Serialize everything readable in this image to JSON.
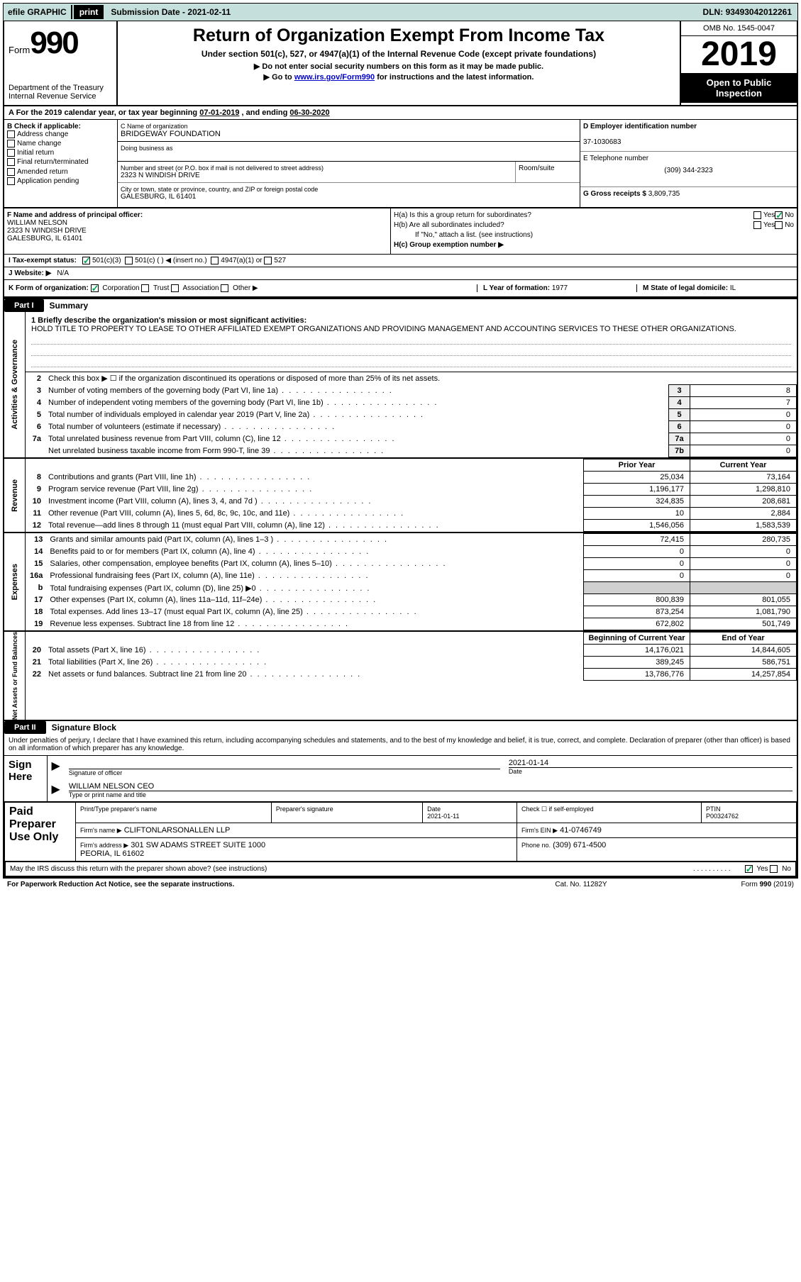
{
  "topbar": {
    "efile_label": "efile GRAPHIC",
    "print_btn": "print",
    "sub_date_label": "Submission Date",
    "sub_date": "2021-02-11",
    "dln_label": "DLN:",
    "dln": "93493042012261"
  },
  "header": {
    "form_prefix": "Form",
    "form_num": "990",
    "dept": "Department of the Treasury\nInternal Revenue Service",
    "title": "Return of Organization Exempt From Income Tax",
    "sub1": "Under section 501(c), 527, or 4947(a)(1) of the Internal Revenue Code (except private foundations)",
    "sub2": "▶ Do not enter social security numbers on this form as it may be made public.",
    "sub3_pre": "▶ Go to ",
    "sub3_link": "www.irs.gov/Form990",
    "sub3_post": " for instructions and the latest information.",
    "omb": "OMB No. 1545-0047",
    "year": "2019",
    "inspect": "Open to Public Inspection"
  },
  "taxyear": {
    "text_a": "A For the 2019 calendar year, or tax year beginning ",
    "begin": "07-01-2019",
    "text_b": " , and ending ",
    "end": "06-30-2020"
  },
  "boxB": {
    "label": "B Check if applicable:",
    "items": [
      "Address change",
      "Name change",
      "Initial return",
      "Final return/terminated",
      "Amended return",
      "Application pending"
    ]
  },
  "boxC": {
    "label_name": "C Name of organization",
    "org": "BRIDGEWAY FOUNDATION",
    "dba_label": "Doing business as",
    "addr_label": "Number and street (or P.O. box if mail is not delivered to street address)",
    "addr": "2323 N WINDISH DRIVE",
    "room_label": "Room/suite",
    "city_label": "City or town, state or province, country, and ZIP or foreign postal code",
    "city": "GALESBURG, IL  61401"
  },
  "boxD": {
    "label": "D Employer identification number",
    "val": "37-1030683"
  },
  "boxE": {
    "label": "E Telephone number",
    "val": "(309) 344-2323"
  },
  "boxG": {
    "label": "G Gross receipts $",
    "val": "3,809,735"
  },
  "boxF": {
    "label": "F Name and address of principal officer:",
    "name": "WILLIAM NELSON",
    "addr1": "2323 N WINDISH DRIVE",
    "addr2": "GALESBURG, IL  61401"
  },
  "boxH": {
    "a_label": "H(a)  Is this a group return for subordinates?",
    "b_label": "H(b)  Are all subordinates included?",
    "b_note": "If \"No,\" attach a list. (see instructions)",
    "c_label": "H(c)  Group exemption number ▶",
    "yes": "Yes",
    "no": "No"
  },
  "boxI": {
    "label": "I Tax-exempt status:",
    "c3": "501(c)(3)",
    "c": "501(c) (   ) ◀ (insert no.)",
    "a1": "4947(a)(1) or",
    "s527": "527"
  },
  "boxJ": {
    "label": "J Website: ▶",
    "val": "N/A"
  },
  "boxK": {
    "label": "K Form of organization:",
    "corp": "Corporation",
    "trust": "Trust",
    "assoc": "Association",
    "other": "Other ▶"
  },
  "boxL": {
    "label": "L Year of formation:",
    "val": "1977"
  },
  "boxM": {
    "label": "M State of legal domicile:",
    "val": "IL"
  },
  "part1": {
    "hdr": "Part I",
    "title": "Summary",
    "side_ag": "Activities & Governance",
    "side_rev": "Revenue",
    "side_exp": "Expenses",
    "side_na": "Net Assets or Fund Balances",
    "q1_label": "1  Briefly describe the organization's mission or most significant activities:",
    "q1_text": "HOLD TITLE TO PROPERTY TO LEASE TO OTHER AFFILIATED EXEMPT ORGANIZATIONS AND PROVIDING MANAGEMENT AND ACCOUNTING SERVICES TO THESE OTHER ORGANIZATIONS.",
    "q2": "Check this box ▶ ☐ if the organization discontinued its operations or disposed of more than 25% of its net assets.",
    "rows_ag": [
      {
        "n": "3",
        "d": "Number of voting members of the governing body (Part VI, line 1a)",
        "box": "3",
        "v": "8"
      },
      {
        "n": "4",
        "d": "Number of independent voting members of the governing body (Part VI, line 1b)",
        "box": "4",
        "v": "7"
      },
      {
        "n": "5",
        "d": "Total number of individuals employed in calendar year 2019 (Part V, line 2a)",
        "box": "5",
        "v": "0"
      },
      {
        "n": "6",
        "d": "Total number of volunteers (estimate if necessary)",
        "box": "6",
        "v": "0"
      },
      {
        "n": "7a",
        "d": "Total unrelated business revenue from Part VIII, column (C), line 12",
        "box": "7a",
        "v": "0"
      },
      {
        "n": "",
        "d": "Net unrelated business taxable income from Form 990-T, line 39",
        "box": "7b",
        "v": "0"
      }
    ],
    "py_hdr": "Prior Year",
    "cy_hdr": "Current Year",
    "rows_rev": [
      {
        "n": "8",
        "d": "Contributions and grants (Part VIII, line 1h)",
        "py": "25,034",
        "cy": "73,164"
      },
      {
        "n": "9",
        "d": "Program service revenue (Part VIII, line 2g)",
        "py": "1,196,177",
        "cy": "1,298,810"
      },
      {
        "n": "10",
        "d": "Investment income (Part VIII, column (A), lines 3, 4, and 7d )",
        "py": "324,835",
        "cy": "208,681"
      },
      {
        "n": "11",
        "d": "Other revenue (Part VIII, column (A), lines 5, 6d, 8c, 9c, 10c, and 11e)",
        "py": "10",
        "cy": "2,884"
      },
      {
        "n": "12",
        "d": "Total revenue—add lines 8 through 11 (must equal Part VIII, column (A), line 12)",
        "py": "1,546,056",
        "cy": "1,583,539"
      }
    ],
    "rows_exp": [
      {
        "n": "13",
        "d": "Grants and similar amounts paid (Part IX, column (A), lines 1–3 )",
        "py": "72,415",
        "cy": "280,735"
      },
      {
        "n": "14",
        "d": "Benefits paid to or for members (Part IX, column (A), line 4)",
        "py": "0",
        "cy": "0"
      },
      {
        "n": "15",
        "d": "Salaries, other compensation, employee benefits (Part IX, column (A), lines 5–10)",
        "py": "0",
        "cy": "0"
      },
      {
        "n": "16a",
        "d": "Professional fundraising fees (Part IX, column (A), line 11e)",
        "py": "0",
        "cy": "0"
      },
      {
        "n": "b",
        "d": "Total fundraising expenses (Part IX, column (D), line 25) ▶0",
        "py": "",
        "cy": "",
        "shade": true
      },
      {
        "n": "17",
        "d": "Other expenses (Part IX, column (A), lines 11a–11d, 11f–24e)",
        "py": "800,839",
        "cy": "801,055"
      },
      {
        "n": "18",
        "d": "Total expenses. Add lines 13–17 (must equal Part IX, column (A), line 25)",
        "py": "873,254",
        "cy": "1,081,790"
      },
      {
        "n": "19",
        "d": "Revenue less expenses. Subtract line 18 from line 12",
        "py": "672,802",
        "cy": "501,749"
      }
    ],
    "by_hdr": "Beginning of Current Year",
    "ey_hdr": "End of Year",
    "rows_na": [
      {
        "n": "20",
        "d": "Total assets (Part X, line 16)",
        "py": "14,176,021",
        "cy": "14,844,605"
      },
      {
        "n": "21",
        "d": "Total liabilities (Part X, line 26)",
        "py": "389,245",
        "cy": "586,751"
      },
      {
        "n": "22",
        "d": "Net assets or fund balances. Subtract line 21 from line 20",
        "py": "13,786,776",
        "cy": "14,257,854"
      }
    ]
  },
  "part2": {
    "hdr": "Part II",
    "title": "Signature Block",
    "disclaim": "Under penalties of perjury, I declare that I have examined this return, including accompanying schedules and statements, and to the best of my knowledge and belief, it is true, correct, and complete. Declaration of preparer (other than officer) is based on all information of which preparer has any knowledge.",
    "sign_here": "Sign Here",
    "sig_officer": "Signature of officer",
    "sig_date_lbl": "Date",
    "sig_date": "2021-01-14",
    "sig_name": "WILLIAM NELSON CEO",
    "sig_name_lbl": "Type or print name and title",
    "paid": "Paid Preparer Use Only",
    "prep_name_lbl": "Print/Type preparer's name",
    "prep_sig_lbl": "Preparer's signature",
    "prep_date_lbl": "Date",
    "prep_date": "2021-01-11",
    "prep_check": "Check ☐ if self-employed",
    "ptin_lbl": "PTIN",
    "ptin": "P00324762",
    "firm_name_lbl": "Firm's name    ▶",
    "firm_name": "CLIFTONLARSONALLEN LLP",
    "firm_ein_lbl": "Firm's EIN ▶",
    "firm_ein": "41-0746749",
    "firm_addr_lbl": "Firm's address ▶",
    "firm_addr": "301 SW ADAMS STREET SUITE 1000\nPEORIA, IL  61602",
    "firm_phone_lbl": "Phone no.",
    "firm_phone": "(309) 671-4500",
    "discuss": "May the IRS discuss this return with the preparer shown above? (see instructions)",
    "yes": "Yes",
    "no": "No"
  },
  "footer": {
    "pra": "For Paperwork Reduction Act Notice, see the separate instructions.",
    "cat": "Cat. No. 11282Y",
    "form": "Form 990 (2019)"
  },
  "colors": {
    "topbar_bg": "#c5e0dc",
    "black": "#000000",
    "link": "#0000cc",
    "shade": "#d0d0d0",
    "check": "#0a5"
  }
}
